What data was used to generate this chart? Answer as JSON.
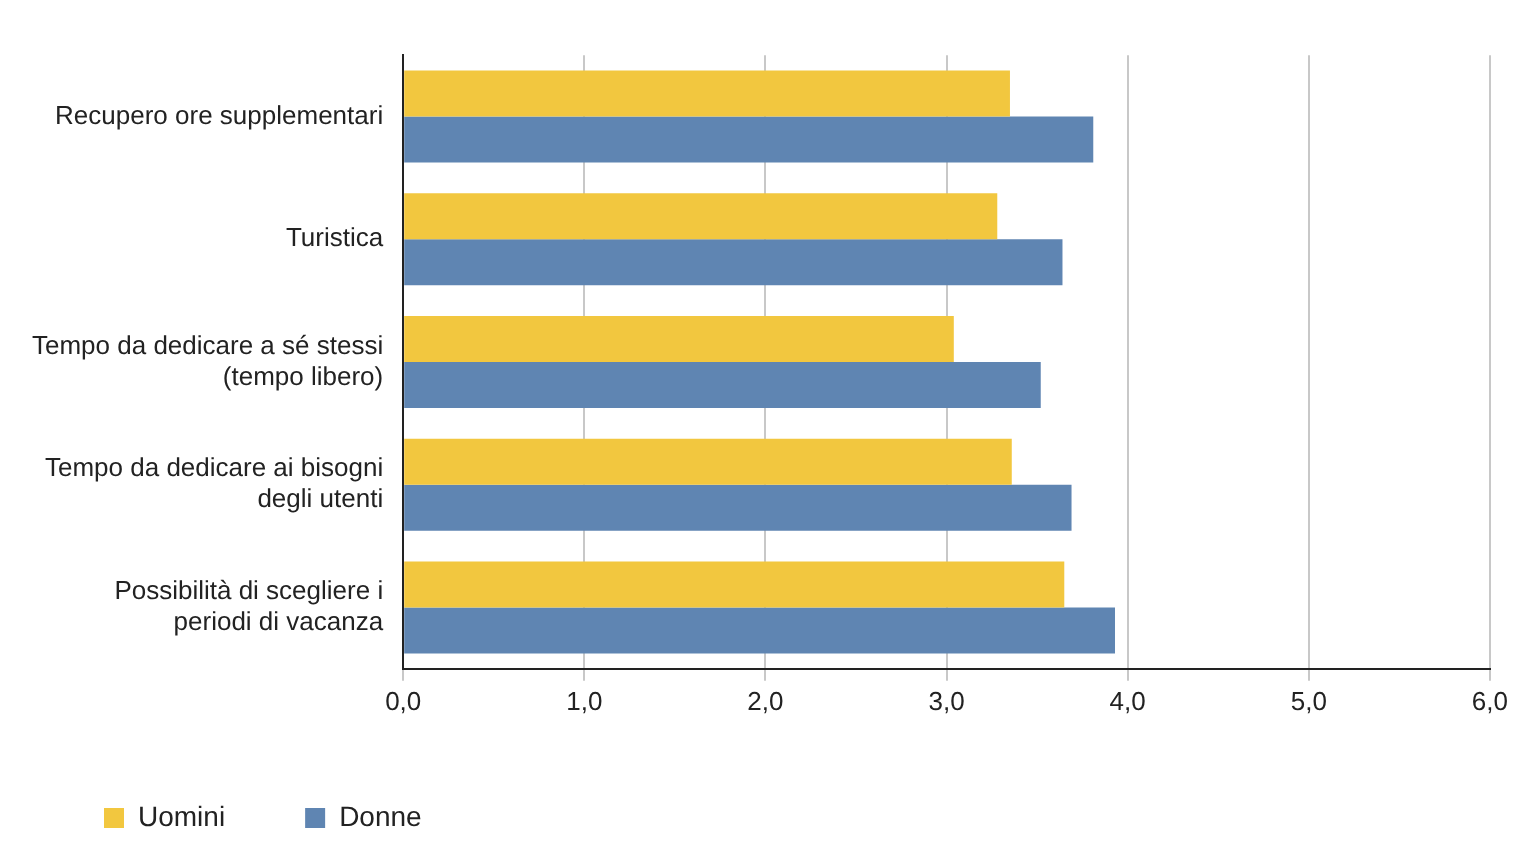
{
  "chart_data": {
    "type": "bar",
    "orientation": "horizontal",
    "categories": [
      "Recupero ore supplementari",
      "Turistica",
      "Tempo da dedicare a sé stessi (tempo libero)",
      "Tempo da dedicare ai bisogni degli utenti",
      "Possibilità di scegliere i periodi di vacanza"
    ],
    "series": [
      {
        "name": "Uomini",
        "color": "#f2c73f",
        "values": [
          3.35,
          3.28,
          3.04,
          3.36,
          3.65
        ]
      },
      {
        "name": "Donne",
        "color": "#5f85b2",
        "values": [
          3.81,
          3.64,
          3.52,
          3.69,
          3.93
        ]
      }
    ],
    "xlim": [
      0,
      6
    ],
    "xticks": [
      {
        "value": 0,
        "label": "0,0"
      },
      {
        "value": 1,
        "label": "1,0"
      },
      {
        "value": 2,
        "label": "2,0"
      },
      {
        "value": 3,
        "label": "3,0"
      },
      {
        "value": 4,
        "label": "4,0"
      },
      {
        "value": 5,
        "label": "5,0"
      },
      {
        "value": 6,
        "label": "6,0"
      }
    ],
    "grid": "x",
    "legend": "bottom left"
  }
}
